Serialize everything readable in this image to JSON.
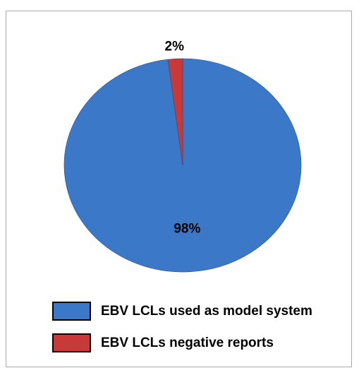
{
  "chart_data": {
    "type": "pie",
    "categories": [
      "EBV LCLs used as model system",
      "EBV LCLs negative reports"
    ],
    "values": [
      98,
      2
    ],
    "value_labels": [
      "98%",
      "2%"
    ],
    "colors": [
      "#3c78c8",
      "#c83a3a"
    ],
    "legend": "bottom"
  }
}
